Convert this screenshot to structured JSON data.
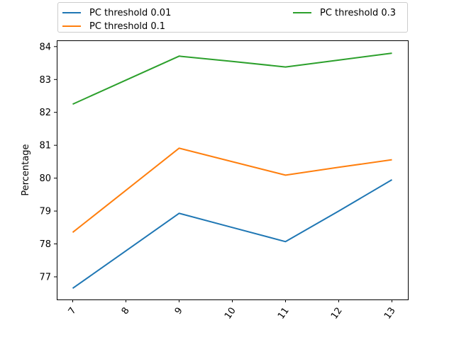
{
  "accent_colors": {
    "blue": "#1f77b4",
    "orange": "#ff7f0e",
    "green": "#2ca02c",
    "axis": "#000000",
    "legend_border": "#cccccc"
  },
  "legend": {
    "entries": [
      {
        "label": "PC threshold 0.01",
        "color": "#1f77b4"
      },
      {
        "label": "PC threshold 0.1",
        "color": "#ff7f0e"
      },
      {
        "label": "PC threshold 0.3",
        "color": "#2ca02c"
      }
    ]
  },
  "chart_data": {
    "type": "line",
    "title": "",
    "xlabel": "",
    "ylabel": "Percentage",
    "x": [
      7,
      8,
      9,
      10,
      11,
      12,
      13
    ],
    "xticks": [
      7,
      8,
      9,
      10,
      11,
      12,
      13
    ],
    "yticks": [
      77,
      78,
      79,
      80,
      81,
      82,
      83,
      84
    ],
    "xlim": [
      6.7,
      13.3
    ],
    "ylim": [
      76.31,
      84.19
    ],
    "grid": false,
    "legend_position": "top, two columns, boxed",
    "x_tick_rotation_deg": 55,
    "series": [
      {
        "name": "PC threshold 0.01",
        "color": "#1f77b4",
        "values": [
          76.65,
          77.79,
          78.93,
          78.5,
          78.07,
          79.0,
          79.95
        ]
      },
      {
        "name": "PC threshold 0.1",
        "color": "#ff7f0e",
        "values": [
          78.35,
          79.63,
          80.91,
          80.5,
          80.09,
          80.33,
          80.56
        ]
      },
      {
        "name": "PC threshold 0.3",
        "color": "#2ca02c",
        "values": [
          82.25,
          82.98,
          83.71,
          83.55,
          83.38,
          83.59,
          83.8
        ]
      }
    ]
  }
}
